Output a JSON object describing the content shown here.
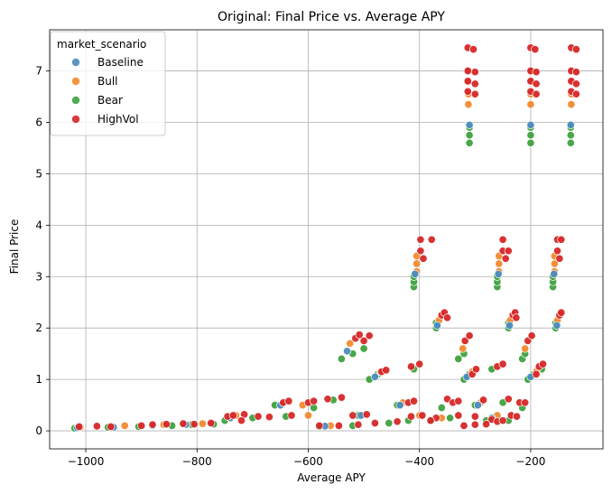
{
  "chart_data": {
    "type": "scatter",
    "title": "Original: Final Price vs. Average APY",
    "xlabel": "Average APY",
    "ylabel": "Final Price",
    "xlim": [
      -1065,
      -70
    ],
    "ylim": [
      -0.35,
      7.8
    ],
    "xticks": [
      -1000,
      -800,
      -600,
      -400,
      -200
    ],
    "xtick_labels": [
      "−1000",
      "−800",
      "−600",
      "−400",
      "−200"
    ],
    "yticks": [
      0,
      1,
      2,
      3,
      4,
      5,
      6,
      7
    ],
    "ytick_labels": [
      "0",
      "1",
      "2",
      "3",
      "4",
      "5",
      "6",
      "7"
    ],
    "grid": true,
    "legend": {
      "title": "market_scenario",
      "position": "top-left",
      "entries": [
        "Baseline",
        "Bull",
        "Bear",
        "HighVol"
      ]
    },
    "colors": {
      "Baseline": "#4c8bbd",
      "Bull": "#f28a2e",
      "Bear": "#3fa13f",
      "HighVol": "#d62728"
    },
    "series": [
      {
        "name": "Bear",
        "points": [
          [
            -310,
            5.6
          ],
          [
            -310,
            5.75
          ],
          [
            -310,
            5.9
          ],
          [
            -200,
            5.6
          ],
          [
            -200,
            5.75
          ],
          [
            -200,
            5.9
          ],
          [
            -128,
            5.6
          ],
          [
            -128,
            5.75
          ],
          [
            -128,
            5.9
          ],
          [
            -410,
            2.8
          ],
          [
            -410,
            2.9
          ],
          [
            -410,
            3.0
          ],
          [
            -260,
            2.8
          ],
          [
            -260,
            2.9
          ],
          [
            -260,
            3.0
          ],
          [
            -160,
            2.8
          ],
          [
            -160,
            2.9
          ],
          [
            -160,
            3.0
          ],
          [
            -370,
            2.0
          ],
          [
            -370,
            2.1
          ],
          [
            -240,
            2.0
          ],
          [
            -240,
            2.1
          ],
          [
            -155,
            2.0
          ],
          [
            -155,
            2.1
          ],
          [
            -540,
            1.4
          ],
          [
            -520,
            1.5
          ],
          [
            -500,
            1.6
          ],
          [
            -330,
            1.4
          ],
          [
            -320,
            1.5
          ],
          [
            -215,
            1.4
          ],
          [
            -210,
            1.5
          ],
          [
            -490,
            1.0
          ],
          [
            -475,
            1.1
          ],
          [
            -410,
            1.2
          ],
          [
            -320,
            1.0
          ],
          [
            -310,
            1.1
          ],
          [
            -270,
            1.2
          ],
          [
            -205,
            1.0
          ],
          [
            -195,
            1.1
          ],
          [
            -180,
            1.2
          ],
          [
            -660,
            0.5
          ],
          [
            -590,
            0.45
          ],
          [
            -555,
            0.6
          ],
          [
            -440,
            0.5
          ],
          [
            -360,
            0.45
          ],
          [
            -300,
            0.5
          ],
          [
            -250,
            0.55
          ],
          [
            -215,
            0.45
          ],
          [
            -750,
            0.2
          ],
          [
            -700,
            0.25
          ],
          [
            -640,
            0.28
          ],
          [
            -510,
            0.3
          ],
          [
            -420,
            0.2
          ],
          [
            -345,
            0.25
          ],
          [
            -280,
            0.2
          ],
          [
            -240,
            0.2
          ],
          [
            -1020,
            0.05
          ],
          [
            -960,
            0.07
          ],
          [
            -905,
            0.08
          ],
          [
            -845,
            0.1
          ],
          [
            -810,
            0.12
          ],
          [
            -770,
            0.13
          ],
          [
            -580,
            0.08
          ],
          [
            -520,
            0.1
          ],
          [
            -455,
            0.15
          ],
          [
            -380,
            0.2
          ]
        ]
      },
      {
        "name": "Bull",
        "points": [
          [
            -312,
            6.35
          ],
          [
            -312,
            6.55
          ],
          [
            -312,
            6.8
          ],
          [
            -312,
            7.0
          ],
          [
            -200,
            6.35
          ],
          [
            -200,
            6.55
          ],
          [
            -200,
            6.8
          ],
          [
            -200,
            7.0
          ],
          [
            -127,
            6.35
          ],
          [
            -127,
            6.55
          ],
          [
            -127,
            6.8
          ],
          [
            -127,
            7.0
          ],
          [
            -405,
            3.1
          ],
          [
            -405,
            3.25
          ],
          [
            -405,
            3.4
          ],
          [
            -257,
            3.1
          ],
          [
            -257,
            3.25
          ],
          [
            -257,
            3.4
          ],
          [
            -157,
            3.1
          ],
          [
            -157,
            3.25
          ],
          [
            -157,
            3.4
          ],
          [
            -365,
            2.15
          ],
          [
            -237,
            2.15
          ],
          [
            -152,
            2.15
          ],
          [
            -525,
            1.7
          ],
          [
            -322,
            1.6
          ],
          [
            -210,
            1.6
          ],
          [
            -470,
            1.15
          ],
          [
            -305,
            1.15
          ],
          [
            -190,
            1.15
          ],
          [
            -610,
            0.5
          ],
          [
            -430,
            0.55
          ],
          [
            -290,
            0.55
          ],
          [
            -730,
            0.3
          ],
          [
            -600,
            0.3
          ],
          [
            -400,
            0.3
          ],
          [
            -260,
            0.3
          ],
          [
            -1010,
            0.07
          ],
          [
            -930,
            0.1
          ],
          [
            -860,
            0.12
          ],
          [
            -790,
            0.14
          ],
          [
            -560,
            0.1
          ],
          [
            -360,
            0.25
          ]
        ]
      },
      {
        "name": "Baseline",
        "points": [
          [
            -310,
            5.95
          ],
          [
            -200,
            5.95
          ],
          [
            -128,
            5.95
          ],
          [
            -408,
            3.05
          ],
          [
            -258,
            3.05
          ],
          [
            -158,
            3.05
          ],
          [
            -368,
            2.05
          ],
          [
            -238,
            2.05
          ],
          [
            -153,
            2.05
          ],
          [
            -530,
            1.55
          ],
          [
            -480,
            1.05
          ],
          [
            -315,
            1.05
          ],
          [
            -200,
            1.05
          ],
          [
            -650,
            0.5
          ],
          [
            -435,
            0.5
          ],
          [
            -295,
            0.5
          ],
          [
            -740,
            0.25
          ],
          [
            -505,
            0.3
          ],
          [
            -270,
            0.25
          ],
          [
            -1015,
            0.06
          ],
          [
            -950,
            0.07
          ],
          [
            -880,
            0.1
          ],
          [
            -820,
            0.12
          ],
          [
            -570,
            0.09
          ]
        ]
      },
      {
        "name": "HighVol",
        "points": [
          [
            -313,
            6.6
          ],
          [
            -313,
            6.8
          ],
          [
            -313,
            7.0
          ],
          [
            -313,
            7.45
          ],
          [
            -303,
            7.42
          ],
          [
            -300,
            6.55
          ],
          [
            -300,
            6.75
          ],
          [
            -300,
            6.98
          ],
          [
            -200,
            6.6
          ],
          [
            -200,
            6.8
          ],
          [
            -200,
            7.0
          ],
          [
            -200,
            7.45
          ],
          [
            -192,
            7.42
          ],
          [
            -190,
            6.55
          ],
          [
            -190,
            6.75
          ],
          [
            -190,
            6.98
          ],
          [
            -127,
            6.6
          ],
          [
            -127,
            6.8
          ],
          [
            -127,
            7.0
          ],
          [
            -127,
            7.45
          ],
          [
            -118,
            7.42
          ],
          [
            -118,
            6.55
          ],
          [
            -118,
            6.75
          ],
          [
            -118,
            6.98
          ],
          [
            -398,
            3.5
          ],
          [
            -398,
            3.72
          ],
          [
            -393,
            3.35
          ],
          [
            -378,
            3.72
          ],
          [
            -250,
            3.5
          ],
          [
            -250,
            3.72
          ],
          [
            -245,
            3.35
          ],
          [
            -240,
            3.5
          ],
          [
            -152,
            3.5
          ],
          [
            -152,
            3.72
          ],
          [
            -148,
            3.35
          ],
          [
            -145,
            3.72
          ],
          [
            -360,
            2.25
          ],
          [
            -355,
            2.3
          ],
          [
            -350,
            2.2
          ],
          [
            -232,
            2.25
          ],
          [
            -228,
            2.3
          ],
          [
            -226,
            2.2
          ],
          [
            -148,
            2.25
          ],
          [
            -145,
            2.3
          ],
          [
            -515,
            1.8
          ],
          [
            -508,
            1.87
          ],
          [
            -490,
            1.85
          ],
          [
            -500,
            1.75
          ],
          [
            -318,
            1.75
          ],
          [
            -310,
            1.85
          ],
          [
            -205,
            1.75
          ],
          [
            -198,
            1.85
          ],
          [
            -468,
            1.15
          ],
          [
            -460,
            1.18
          ],
          [
            -415,
            1.25
          ],
          [
            -400,
            1.3
          ],
          [
            -305,
            1.1
          ],
          [
            -298,
            1.2
          ],
          [
            -260,
            1.25
          ],
          [
            -250,
            1.3
          ],
          [
            -185,
            1.25
          ],
          [
            -178,
            1.3
          ],
          [
            -190,
            1.1
          ],
          [
            -645,
            0.55
          ],
          [
            -635,
            0.58
          ],
          [
            -600,
            0.55
          ],
          [
            -590,
            0.58
          ],
          [
            -565,
            0.62
          ],
          [
            -540,
            0.65
          ],
          [
            -420,
            0.55
          ],
          [
            -410,
            0.58
          ],
          [
            -350,
            0.62
          ],
          [
            -340,
            0.55
          ],
          [
            -330,
            0.58
          ],
          [
            -285,
            0.6
          ],
          [
            -240,
            0.62
          ],
          [
            -220,
            0.55
          ],
          [
            -210,
            0.55
          ],
          [
            -745,
            0.28
          ],
          [
            -735,
            0.3
          ],
          [
            -715,
            0.32
          ],
          [
            -690,
            0.28
          ],
          [
            -670,
            0.27
          ],
          [
            -630,
            0.3
          ],
          [
            -520,
            0.3
          ],
          [
            -495,
            0.32
          ],
          [
            -415,
            0.28
          ],
          [
            -395,
            0.3
          ],
          [
            -370,
            0.25
          ],
          [
            -330,
            0.3
          ],
          [
            -300,
            0.28
          ],
          [
            -270,
            0.22
          ],
          [
            -235,
            0.3
          ],
          [
            -225,
            0.28
          ],
          [
            -1012,
            0.08
          ],
          [
            -980,
            0.09
          ],
          [
            -955,
            0.08
          ],
          [
            -900,
            0.1
          ],
          [
            -880,
            0.12
          ],
          [
            -855,
            0.13
          ],
          [
            -825,
            0.14
          ],
          [
            -805,
            0.13
          ],
          [
            -775,
            0.15
          ],
          [
            -720,
            0.2
          ],
          [
            -580,
            0.1
          ],
          [
            -545,
            0.1
          ],
          [
            -510,
            0.12
          ],
          [
            -480,
            0.15
          ],
          [
            -440,
            0.18
          ],
          [
            -380,
            0.2
          ],
          [
            -320,
            0.1
          ],
          [
            -300,
            0.12
          ],
          [
            -280,
            0.13
          ],
          [
            -260,
            0.18
          ],
          [
            -250,
            0.2
          ]
        ]
      }
    ]
  }
}
